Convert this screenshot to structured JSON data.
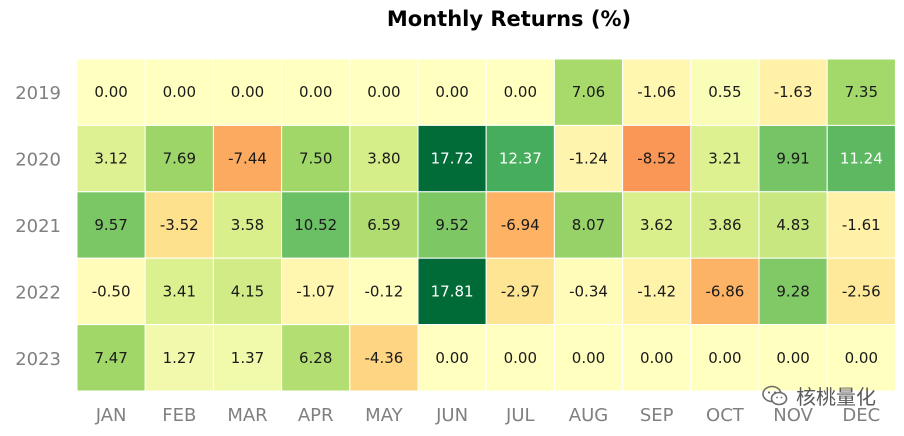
{
  "chart_data": {
    "type": "heatmap",
    "title": "Monthly Returns (%)",
    "x_categories": [
      "JAN",
      "FEB",
      "MAR",
      "APR",
      "MAY",
      "JUN",
      "JUL",
      "AUG",
      "SEP",
      "OCT",
      "NOV",
      "DEC"
    ],
    "y_categories": [
      "2019",
      "2020",
      "2021",
      "2022",
      "2023"
    ],
    "values": [
      [
        0.0,
        0.0,
        0.0,
        0.0,
        0.0,
        0.0,
        0.0,
        7.06,
        -1.06,
        0.55,
        -1.63,
        7.35
      ],
      [
        3.12,
        7.69,
        -7.44,
        7.5,
        3.8,
        17.72,
        12.37,
        -1.24,
        -8.52,
        3.21,
        9.91,
        11.24
      ],
      [
        9.57,
        -3.52,
        3.58,
        10.52,
        6.59,
        9.52,
        -6.94,
        8.07,
        3.62,
        3.86,
        4.83,
        -1.61
      ],
      [
        -0.5,
        3.41,
        4.15,
        -1.07,
        -0.12,
        17.81,
        -2.97,
        -0.34,
        -1.42,
        -6.86,
        9.28,
        -2.56
      ],
      [
        7.47,
        1.27,
        1.37,
        6.28,
        -4.36,
        0.0,
        0.0,
        0.0,
        0.0,
        0.0,
        0.0,
        0.0
      ]
    ],
    "value_format": "0.00",
    "colormap": "RdYlGn",
    "color_range": [
      -18,
      18
    ],
    "legend": "none"
  },
  "watermark": {
    "icon": "wechat-icon",
    "text": "核桃量化"
  }
}
